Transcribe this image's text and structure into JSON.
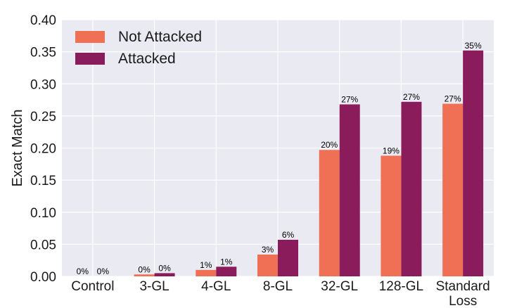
{
  "chart_data": {
    "type": "bar",
    "ylabel": "Exact Match",
    "xlabel": "",
    "ylim": [
      0,
      0.4
    ],
    "yticks": [
      "0.00",
      "0.05",
      "0.10",
      "0.15",
      "0.20",
      "0.25",
      "0.30",
      "0.35",
      "0.40"
    ],
    "grid": true,
    "legend_position": "top-left",
    "categories": [
      "Control",
      "3-GL",
      "4-GL",
      "8-GL",
      "32-GL",
      "128-GL",
      "Standard\nLoss"
    ],
    "series": [
      {
        "name": "Not Attacked",
        "color": "#f07055",
        "values": [
          0.0,
          0.003,
          0.01,
          0.034,
          0.197,
          0.188,
          0.269
        ],
        "labels": [
          "0%",
          "0%",
          "1%",
          "3%",
          "20%",
          "19%",
          "27%"
        ]
      },
      {
        "name": "Attacked",
        "color": "#8b1c5c",
        "values": [
          0.0,
          0.005,
          0.015,
          0.057,
          0.268,
          0.272,
          0.352
        ],
        "labels": [
          "0%",
          "0%",
          "1%",
          "6%",
          "27%",
          "27%",
          "35%"
        ]
      }
    ],
    "background": "#eaeaf2",
    "gridcolor": "#ffffff"
  }
}
